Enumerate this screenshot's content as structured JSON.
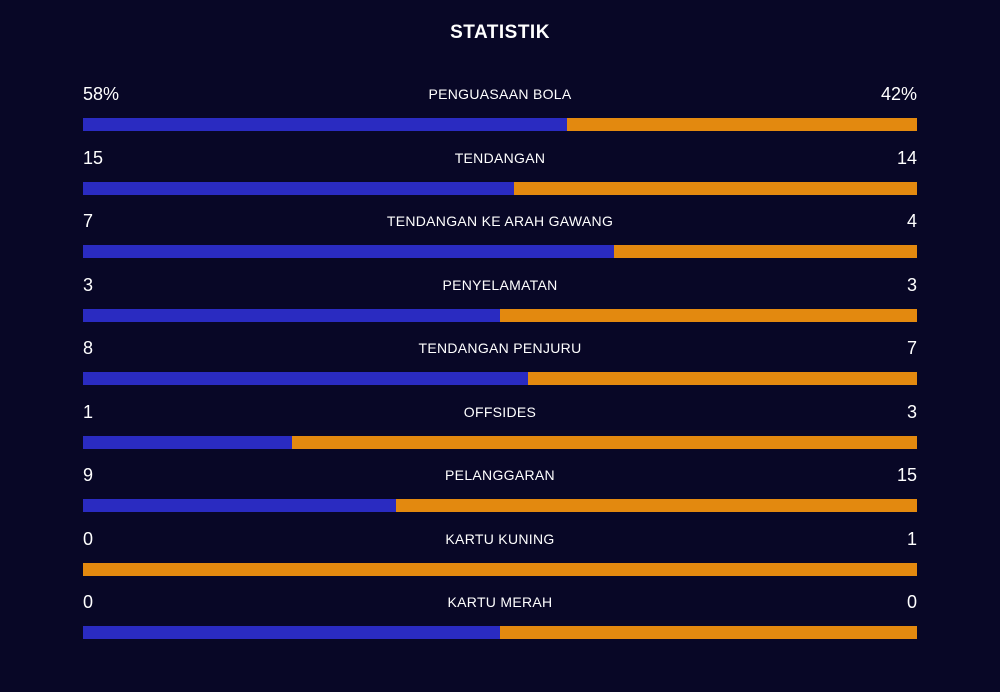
{
  "title": "STATISTIK",
  "colors": {
    "background": "#080726",
    "home": "#2a2bc1",
    "away": "#e3890f",
    "text": "#ffffff"
  },
  "stats": [
    {
      "label": "PENGUASAAN BOLA",
      "home": "58%",
      "away": "42%",
      "home_value": 58,
      "away_value": 42
    },
    {
      "label": "TENDANGAN",
      "home": "15",
      "away": "14",
      "home_value": 15,
      "away_value": 14
    },
    {
      "label": "TENDANGAN KE ARAH GAWANG",
      "home": "7",
      "away": "4",
      "home_value": 7,
      "away_value": 4
    },
    {
      "label": "PENYELAMATAN",
      "home": "3",
      "away": "3",
      "home_value": 3,
      "away_value": 3
    },
    {
      "label": "TENDANGAN PENJURU",
      "home": "8",
      "away": "7",
      "home_value": 8,
      "away_value": 7
    },
    {
      "label": "OFFSIDES",
      "home": "1",
      "away": "3",
      "home_value": 1,
      "away_value": 3
    },
    {
      "label": "PELANGGARAN",
      "home": "9",
      "away": "15",
      "home_value": 9,
      "away_value": 15
    },
    {
      "label": "KARTU KUNING",
      "home": "0",
      "away": "1",
      "home_value": 0,
      "away_value": 1
    },
    {
      "label": "KARTU MERAH",
      "home": "0",
      "away": "0",
      "home_value": 0,
      "away_value": 0
    }
  ]
}
